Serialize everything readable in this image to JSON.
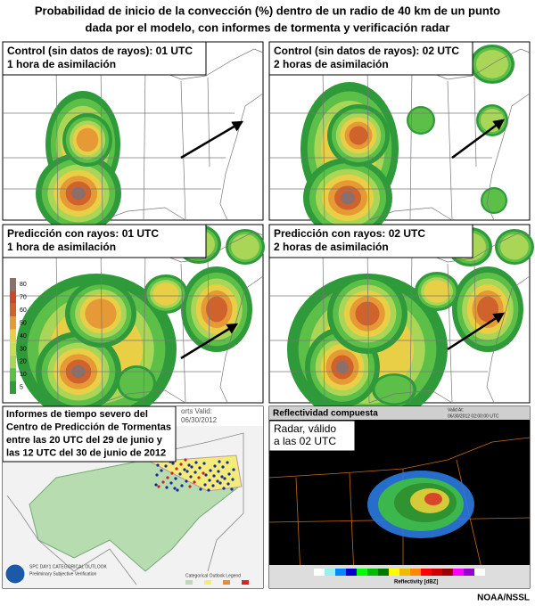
{
  "title": [
    "Probabilidad de inicio de la convección (%) dentro de un radio de 40 km de un punto",
    "dada por el modelo, con informes de tormenta y verificación radar"
  ],
  "panels": [
    {
      "label": [
        "Control (sin datos de rayos): 01 UTC",
        "1 hora de asimilación"
      ]
    },
    {
      "label": [
        "Control (sin datos de rayos): 02 UTC",
        "2 horas de asimilación"
      ]
    },
    {
      "label": [
        "Predicción con rayos: 01 UTC",
        "1 hora de asimilación"
      ]
    },
    {
      "label": [
        "Predicción con rayos: 02 UTC",
        "2 horas de asimilación"
      ]
    }
  ],
  "colorbar": {
    "ticks": [
      80,
      70,
      60,
      50,
      40,
      30,
      20,
      10,
      5
    ]
  },
  "spc": {
    "label": [
      "Informes de tiempo severo del",
      "Centro de Predicción de Tormentas",
      "entre las 20 UTC del 29 de junio y",
      "las 12 UTC del 30  de junio de 2012"
    ],
    "valid": [
      "orts Valid:",
      "06/30/2012"
    ],
    "footer": [
      "SPC DAY1 CATEGORICAL OUTLOOK",
      "Preliminary Subjective Verification"
    ],
    "legend": "Categorical Outlook Legend"
  },
  "radar": {
    "header": "Reflectividad compuesta",
    "label": [
      "Radar, válido",
      "a las 02 UTC"
    ],
    "valid": [
      "Valid At:",
      "06/30/2012 02:00:00 UTC"
    ],
    "scale": "Reflectivity [dBZ]"
  },
  "credit": "NOAA/NSSL"
}
